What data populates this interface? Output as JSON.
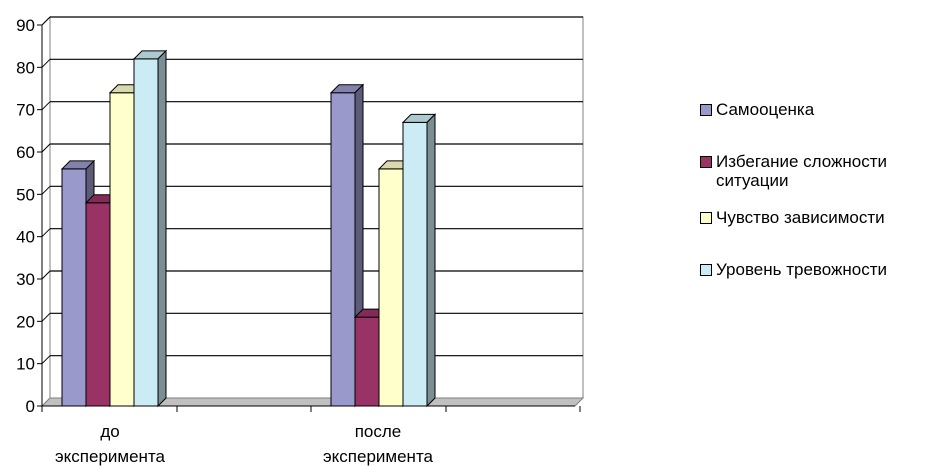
{
  "colors": {
    "plot_border": "#808080",
    "grid": "#000000",
    "floor": "#808080"
  },
  "chart_data": {
    "type": "bar",
    "categories": [
      [
        "до",
        "эксперимента"
      ],
      [
        "после",
        "эксперимента"
      ]
    ],
    "series": [
      {
        "name": "Самооценка",
        "values": [
          56,
          74
        ],
        "color": "#9999CC"
      },
      {
        "name": "Избегание сложности ситуации",
        "values": [
          48,
          21
        ],
        "color": "#993366"
      },
      {
        "name": "Чувство зависимости",
        "values": [
          74,
          56
        ],
        "color": "#FFFFCC"
      },
      {
        "name": "Уровень тревожности",
        "values": [
          82,
          67
        ],
        "color": "#CCECF5"
      }
    ],
    "title": "",
    "xlabel": "",
    "ylabel": "",
    "ylim": [
      0,
      90
    ],
    "yticks": [
      0,
      10,
      20,
      30,
      40,
      50,
      60,
      70,
      80,
      90
    ],
    "grid": true,
    "legend": "right",
    "style": "3d-clustered-column"
  },
  "legend_items": [
    {
      "lines": [
        "Самооценка"
      ]
    },
    {
      "lines": [
        "Избегание сложности",
        "ситуации"
      ]
    },
    {
      "lines": [
        "Чувство зависимости"
      ]
    },
    {
      "lines": [
        "Уровень тревожности"
      ]
    }
  ]
}
